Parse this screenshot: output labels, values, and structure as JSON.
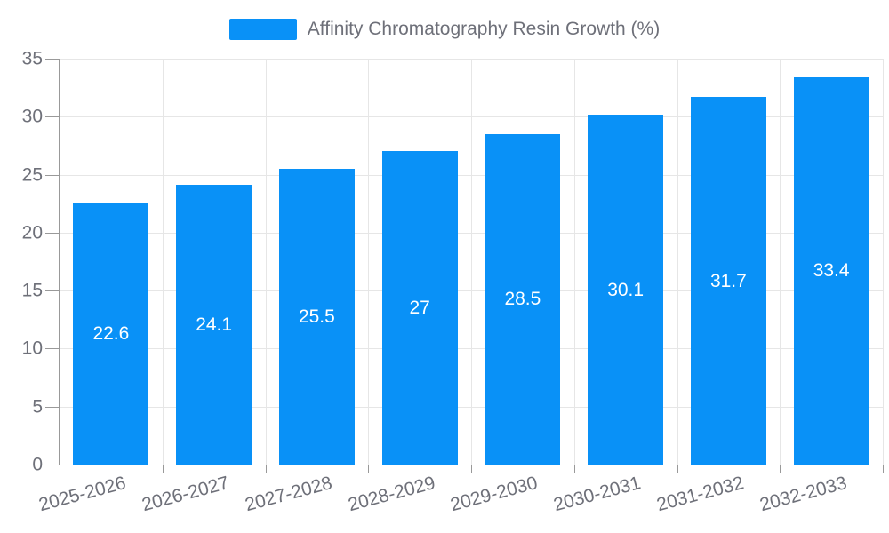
{
  "legend": {
    "label": "Affinity Chromatography Resin Growth (%)"
  },
  "chart_data": {
    "type": "bar",
    "title": "Affinity Chromatography Resin Growth (%)",
    "categories": [
      "2025-2026",
      "2026-2027",
      "2027-2028",
      "2028-2029",
      "2029-2030",
      "2030-2031",
      "2031-2032",
      "2032-2033"
    ],
    "values": [
      22.6,
      24.1,
      25.5,
      27,
      28.5,
      30.1,
      31.7,
      33.4
    ],
    "value_labels": [
      "22.6",
      "24.1",
      "25.5",
      "27",
      "28.5",
      "30.1",
      "31.7",
      "33.4"
    ],
    "xlabel": "",
    "ylabel": "",
    "ylim": [
      0,
      35
    ],
    "yticks": [
      0,
      5,
      10,
      15,
      20,
      25,
      30,
      35
    ],
    "grid": true,
    "legend_position": "top-center",
    "x_label_rotation_deg": -15,
    "colors": {
      "bar": "#0991f7",
      "bar_value_label": "#ffffff",
      "gridline": "#e6e6e6",
      "axis": "#999999",
      "axis_text": "#6e7079",
      "legend_text": "#6e7079",
      "background": "#ffffff"
    }
  }
}
